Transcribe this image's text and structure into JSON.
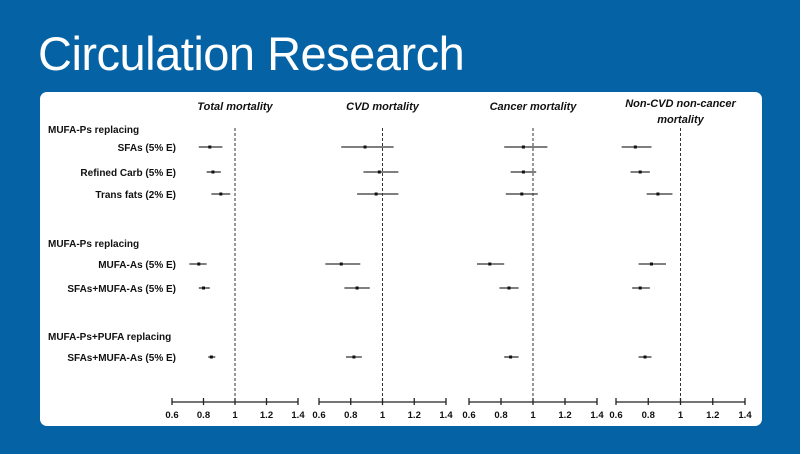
{
  "header": {
    "title": "Circulation Research"
  },
  "chart_data": {
    "type": "forest",
    "reference_line": 1,
    "xlim": [
      0.6,
      1.4
    ],
    "xticks": [
      "0.6",
      "0.8",
      "1",
      "1.2",
      "1.4"
    ],
    "groups": [
      {
        "label": "MUFA-Ps replacing",
        "rows": [
          "SFAs (5% E)",
          "Refined Carb (5% E)",
          "Trans fats (2% E)"
        ]
      },
      {
        "label": "MUFA-Ps replacing",
        "rows": [
          "MUFA-As (5% E)",
          "SFAs+MUFA-As (5% E)"
        ]
      },
      {
        "label": "MUFA-Ps+PUFA replacing",
        "rows": [
          "SFAs+MUFA-As (5% E)"
        ]
      }
    ],
    "panels": [
      {
        "title": "Total mortality",
        "estimates": [
          [
            0.84,
            0.77,
            0.92
          ],
          [
            0.86,
            0.82,
            0.91
          ],
          [
            0.91,
            0.85,
            0.97
          ],
          [
            0.77,
            0.71,
            0.82
          ],
          [
            0.8,
            0.77,
            0.84
          ],
          [
            0.85,
            0.83,
            0.875
          ]
        ]
      },
      {
        "title": "CVD mortality",
        "estimates": [
          [
            0.89,
            0.74,
            1.07
          ],
          [
            0.98,
            0.88,
            1.1
          ],
          [
            0.96,
            0.84,
            1.1
          ],
          [
            0.74,
            0.64,
            0.86
          ],
          [
            0.84,
            0.76,
            0.92
          ],
          [
            0.82,
            0.77,
            0.87
          ]
        ]
      },
      {
        "title": "Cancer mortality",
        "estimates": [
          [
            0.94,
            0.82,
            1.09
          ],
          [
            0.94,
            0.86,
            1.02
          ],
          [
            0.93,
            0.83,
            1.03
          ],
          [
            0.73,
            0.65,
            0.82
          ],
          [
            0.85,
            0.79,
            0.91
          ],
          [
            0.86,
            0.82,
            0.91
          ]
        ]
      },
      {
        "title": "Non-CVD non-cancer mortality",
        "title_lines": [
          "Non-CVD non-cancer",
          "mortality"
        ],
        "estimates": [
          [
            0.72,
            0.635,
            0.82
          ],
          [
            0.75,
            0.69,
            0.81
          ],
          [
            0.86,
            0.79,
            0.95
          ],
          [
            0.82,
            0.74,
            0.91
          ],
          [
            0.75,
            0.7,
            0.81
          ],
          [
            0.78,
            0.74,
            0.82
          ]
        ]
      }
    ]
  }
}
